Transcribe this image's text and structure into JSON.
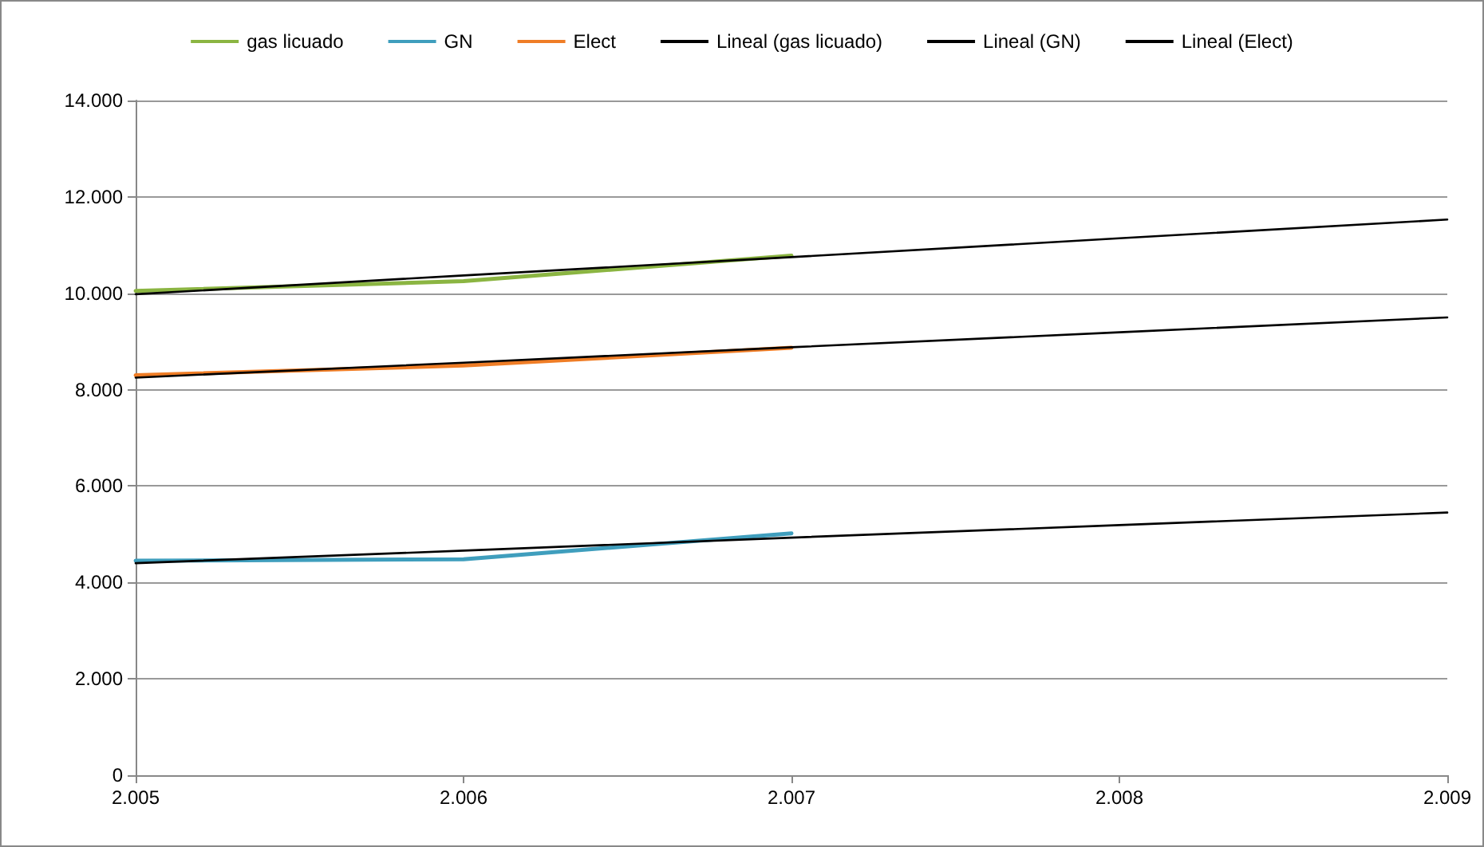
{
  "chart_data": {
    "type": "line",
    "x": [
      2005,
      2006,
      2007,
      2008,
      2009
    ],
    "series": [
      {
        "name": "gas licuado",
        "color": "#8bb542",
        "values": [
          10050,
          10250,
          10780,
          null,
          null
        ]
      },
      {
        "name": "GN",
        "color": "#3f9ebd",
        "values": [
          4450,
          4480,
          5020,
          null,
          null
        ]
      },
      {
        "name": "Elect",
        "color": "#ef7d26",
        "values": [
          8300,
          8500,
          8870,
          null,
          null
        ]
      },
      {
        "name": "Lineal (gas licuado)",
        "type": "line",
        "color": "#000000",
        "values": [
          9980,
          10370,
          10750,
          11140,
          11530
        ]
      },
      {
        "name": "Lineal (GN)",
        "type": "line",
        "color": "#000000",
        "values": [
          4400,
          4660,
          4930,
          5190,
          5450
        ]
      },
      {
        "name": "Lineal (Elect)",
        "type": "line",
        "color": "#000000",
        "values": [
          8250,
          8560,
          8880,
          9190,
          9500
        ]
      }
    ],
    "xlim": [
      2005,
      2009
    ],
    "xticks": [
      {
        "value": 2005,
        "label": "2.005"
      },
      {
        "value": 2006,
        "label": "2.006"
      },
      {
        "value": 2007,
        "label": "2.007"
      },
      {
        "value": 2008,
        "label": "2.008"
      },
      {
        "value": 2009,
        "label": "2.009"
      }
    ],
    "ylim": [
      0,
      14000
    ],
    "yticks": [
      {
        "value": 0,
        "label": "0"
      },
      {
        "value": 2000,
        "label": "2.000"
      },
      {
        "value": 4000,
        "label": "4.000"
      },
      {
        "value": 6000,
        "label": "6.000"
      },
      {
        "value": 8000,
        "label": "8.000"
      },
      {
        "value": 10000,
        "label": "10.000"
      },
      {
        "value": 12000,
        "label": "12.000"
      },
      {
        "value": 14000,
        "label": "14.000"
      }
    ],
    "grid": "y",
    "legend": "top",
    "marker": "none",
    "line_style": "solid"
  }
}
